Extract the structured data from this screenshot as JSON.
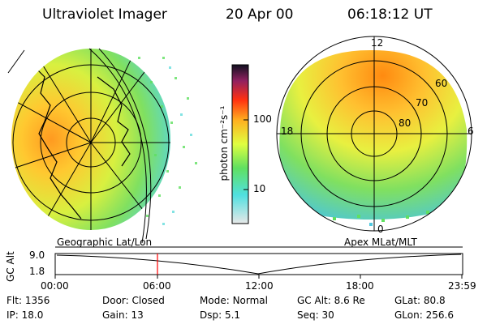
{
  "header": {
    "instrument": "Ultraviolet Imager",
    "date": "20 Apr 00",
    "time": "06:18:12 UT"
  },
  "left_panel": {
    "caption": "Geographic Lat/Lon"
  },
  "right_panel": {
    "caption": "Apex MLat/MLT",
    "mlt_labels": [
      "12",
      "18",
      "6",
      "0"
    ],
    "lat_labels": [
      "60",
      "70",
      "80"
    ]
  },
  "colorbar": {
    "unit_label": "photon cm⁻²s⁻¹",
    "tick_labels": [
      "100",
      "10"
    ],
    "colors": [
      "#d8d8d8",
      "#50e0e0",
      "#60e060",
      "#e0ff40",
      "#ff9000",
      "#ff1010",
      "#902060",
      "#101020"
    ]
  },
  "timeline": {
    "axis_label": "GC Alt",
    "y_ticks": [
      "9.0",
      "1.8"
    ],
    "x_ticks": [
      "00:00",
      "06:00",
      "12:00",
      "18:00",
      "23:59"
    ],
    "current_marker_time": "06:18",
    "marker_color": "#ff0000"
  },
  "info": {
    "row1": [
      {
        "label": "Flt:",
        "value": "1356"
      },
      {
        "label": "Door:",
        "value": "Closed"
      },
      {
        "label": "Mode:",
        "value": "Normal"
      },
      {
        "label": "GC Alt:",
        "value": "8.6 Re"
      },
      {
        "label": "GLat:",
        "value": "80.8"
      }
    ],
    "row2": [
      {
        "label": "IP:",
        "value": "18.0"
      },
      {
        "label": "Gain:",
        "value": "13"
      },
      {
        "label": "Dsp:",
        "value": "5.1"
      },
      {
        "label": "Seq:",
        "value": "30"
      },
      {
        "label": "GLon:",
        "value": "256.6"
      }
    ]
  }
}
